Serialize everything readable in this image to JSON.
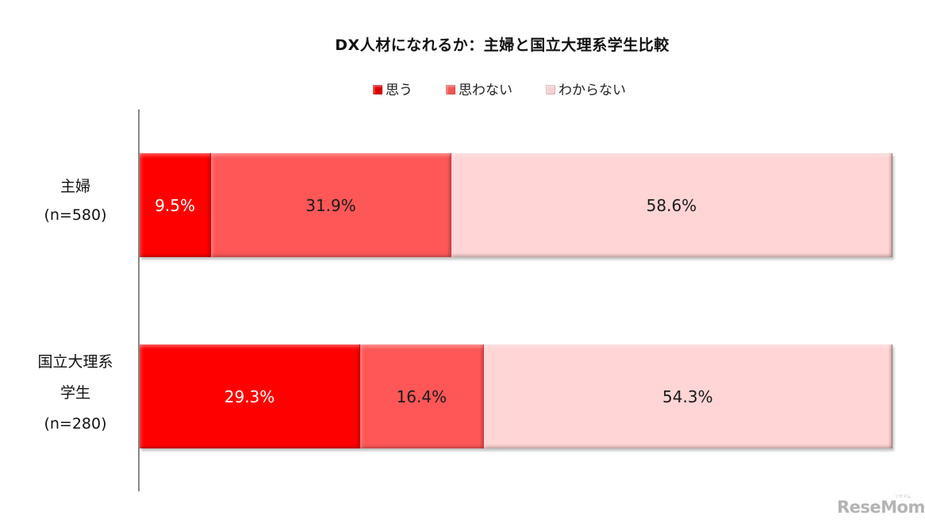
{
  "chart_data": {
    "type": "bar",
    "orientation": "horizontal",
    "stacked": true,
    "percent_stacked": true,
    "title": "DX人材になれるか：主婦と国立大理系学生比較",
    "xlabel": "",
    "ylabel": "",
    "xlim": [
      0,
      100
    ],
    "grid": false,
    "legend_position": "top",
    "categories": [
      "主婦 (n=580)",
      "国立大理系学生 (n=280)"
    ],
    "category_label_lines": [
      [
        "主婦",
        "(n=580)"
      ],
      [
        "国立大理系",
        "学生",
        "(n=280)"
      ]
    ],
    "series": [
      {
        "name": "思う",
        "values": [
          9.5,
          29.3
        ],
        "color": "#ff0000",
        "label_color": "#ffffff"
      },
      {
        "name": "思わない",
        "values": [
          31.9,
          16.4
        ],
        "color": "#ff5757",
        "label_color": "#1a1a1a"
      },
      {
        "name": "わからない",
        "values": [
          58.6,
          54.3
        ],
        "color": "#ffd5d5",
        "label_color": "#1a1a1a"
      }
    ],
    "data_labels": [
      [
        "9.5%",
        "31.9%",
        "58.6%"
      ],
      [
        "29.3%",
        "16.4%",
        "54.3%"
      ]
    ]
  },
  "watermark": {
    "text": "ReseMom",
    "sub": "リセマム"
  }
}
